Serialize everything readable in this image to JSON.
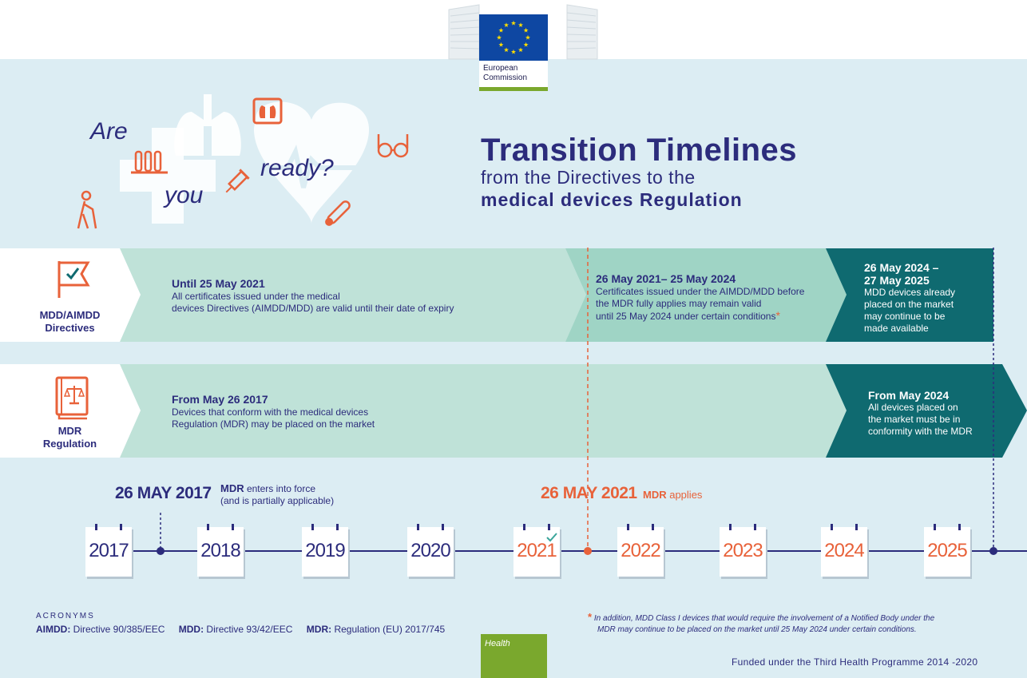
{
  "header": {
    "logo_text_line1": "European",
    "logo_text_line2": "Commission",
    "title": "Transition Timelines",
    "subtitle": "from the Directives to the",
    "subtitle_bold": "medical devices Regulation",
    "art_words": [
      "Are",
      "you",
      "ready?"
    ]
  },
  "rows": [
    {
      "label_line1": "MDD/AIMDD",
      "label_line2": "Directives",
      "icon": "flag-checkmark-icon",
      "segments": [
        {
          "heading": "Until 25 May 2021",
          "body_line1": "All certificates issued under the medical",
          "body_line2": "devices Directives (AIMDD/MDD) are valid until their date of expiry"
        },
        {
          "heading": "26 May 2021– 25 May 2024",
          "body_line1": "Certificates issued under the AIMDD/MDD before",
          "body_line2": "the MDR fully applies may remain valid",
          "body_line3": "until 25 May 2024 under certain conditions",
          "footnote_mark": "*"
        },
        {
          "heading_line1": "26 May 2024 –",
          "heading_line2": "27 May 2025",
          "body_line1": "MDD devices already",
          "body_line2": "placed on the market",
          "body_line3": "may continue to be",
          "body_line4": "made available"
        }
      ]
    },
    {
      "label_line1": "MDR",
      "label_line2": "Regulation",
      "icon": "law-book-scales-icon",
      "segments": [
        {
          "heading": "From May 26 2017",
          "body_line1": "Devices that conform with the medical devices",
          "body_line2": "Regulation (MDR) may be placed on the market"
        },
        {
          "heading": "From May 2024",
          "body_line1": "All devices placed on",
          "body_line2": "the market must be in",
          "body_line3": "conformity with the MDR"
        }
      ]
    }
  ],
  "milestones": [
    {
      "date": "26 MAY 2017",
      "label_bold": "MDR",
      "label_line1": " enters into force",
      "label_line2": "(and is partially applicable)"
    },
    {
      "date": "26 MAY 2021",
      "label_bold": "MDR",
      "label_rest": " applies"
    }
  ],
  "years": [
    "2017",
    "2018",
    "2019",
    "2020",
    "2021",
    "2022",
    "2023",
    "2024",
    "2025"
  ],
  "colors": {
    "navy": "#2c2c7c",
    "orange": "#e8623a",
    "light_teal": "#bfe2d8",
    "mid_teal": "#9fd4c5",
    "dark_teal": "#0f6a70",
    "band": "#dcedf3",
    "green": "#7aa82d"
  },
  "acronyms": {
    "title": "ACRONYMS",
    "items": [
      {
        "abbr": "AIMDD:",
        "text": " Directive 90/385/EEC"
      },
      {
        "abbr": "MDD:",
        "text": " Directive 93/42/EEC"
      },
      {
        "abbr": "MDR:",
        "text": " Regulation (EU) 2017/745"
      }
    ]
  },
  "footnote": {
    "mark": "*",
    "line1": "In addition, MDD Class I devices that would require the involvement of a Notified Body under the",
    "line2": "MDR may continue to be placed on the market until 25 May 2024 under certain conditions."
  },
  "footer": {
    "health": "Health",
    "funded": "Funded under the Third Health Programme 2014 -2020"
  }
}
